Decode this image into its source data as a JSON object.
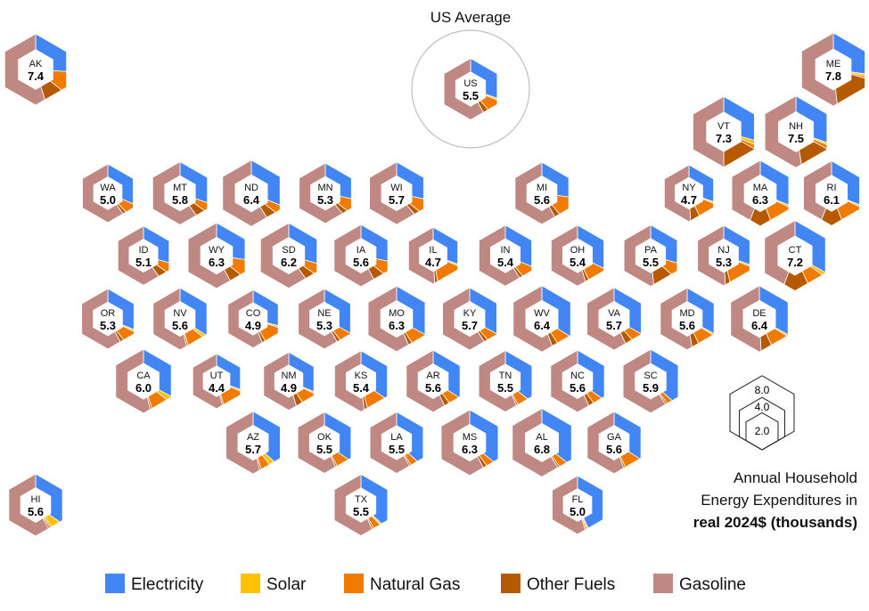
{
  "chart_data": {
    "type": "hex-tile-map-donut",
    "us_average_label": "US Average",
    "size_legend": {
      "values": [
        "8.0",
        "4.0",
        "2.0"
      ],
      "scale": "area"
    },
    "title_lines": [
      "Annual Household",
      "Energy Expenditures in",
      "real 2024$ (thousands)"
    ],
    "categories": [
      "Electricity",
      "Solar",
      "Natural Gas",
      "Other Fuels",
      "Gasoline"
    ],
    "colors": {
      "Electricity": "#4285F4",
      "Solar": "#FFC000",
      "Natural Gas": "#F07B00",
      "Other Fuels": "#B55A00",
      "Gasoline": "#C08882"
    },
    "share_order": "clockwise from top: Electricity, Solar, Natural Gas, Other Fuels, Gasoline (shares approximate)",
    "states": [
      {
        "code": "US",
        "value": "5.5",
        "shares": [
          0.3,
          0.01,
          0.08,
          0.03,
          0.58
        ]
      },
      {
        "code": "AK",
        "value": "7.4",
        "shares": [
          0.26,
          0.0,
          0.1,
          0.09,
          0.55
        ]
      },
      {
        "code": "ME",
        "value": "7.8",
        "shares": [
          0.27,
          0.01,
          0.01,
          0.19,
          0.52
        ]
      },
      {
        "code": "VT",
        "value": "7.3",
        "shares": [
          0.29,
          0.02,
          0.02,
          0.17,
          0.5
        ]
      },
      {
        "code": "NH",
        "value": "7.5",
        "shares": [
          0.3,
          0.01,
          0.02,
          0.14,
          0.53
        ]
      },
      {
        "code": "WA",
        "value": "5.0",
        "shares": [
          0.31,
          0.0,
          0.07,
          0.02,
          0.6
        ]
      },
      {
        "code": "MT",
        "value": "5.8",
        "shares": [
          0.3,
          0.0,
          0.05,
          0.05,
          0.6
        ]
      },
      {
        "code": "ND",
        "value": "6.4",
        "shares": [
          0.31,
          0.0,
          0.05,
          0.05,
          0.59
        ]
      },
      {
        "code": "MN",
        "value": "5.3",
        "shares": [
          0.28,
          0.0,
          0.08,
          0.03,
          0.61
        ]
      },
      {
        "code": "WI",
        "value": "5.7",
        "shares": [
          0.28,
          0.0,
          0.08,
          0.03,
          0.61
        ]
      },
      {
        "code": "MI",
        "value": "5.6",
        "shares": [
          0.27,
          0.0,
          0.12,
          0.03,
          0.58
        ]
      },
      {
        "code": "NY",
        "value": "4.7",
        "shares": [
          0.3,
          0.01,
          0.12,
          0.06,
          0.51
        ]
      },
      {
        "code": "MA",
        "value": "6.3",
        "shares": [
          0.31,
          0.01,
          0.12,
          0.12,
          0.44
        ]
      },
      {
        "code": "RI",
        "value": "6.1",
        "shares": [
          0.31,
          0.01,
          0.12,
          0.12,
          0.44
        ]
      },
      {
        "code": "ID",
        "value": "5.1",
        "shares": [
          0.29,
          0.0,
          0.06,
          0.05,
          0.6
        ]
      },
      {
        "code": "WY",
        "value": "6.3",
        "shares": [
          0.27,
          0.0,
          0.09,
          0.06,
          0.58
        ]
      },
      {
        "code": "SD",
        "value": "6.2",
        "shares": [
          0.29,
          0.0,
          0.06,
          0.05,
          0.6
        ]
      },
      {
        "code": "IA",
        "value": "5.6",
        "shares": [
          0.28,
          0.0,
          0.08,
          0.06,
          0.58
        ]
      },
      {
        "code": "IL",
        "value": "4.7",
        "shares": [
          0.3,
          0.01,
          0.16,
          0.02,
          0.51
        ]
      },
      {
        "code": "IN",
        "value": "5.4",
        "shares": [
          0.31,
          0.0,
          0.08,
          0.02,
          0.59
        ]
      },
      {
        "code": "OH",
        "value": "5.4",
        "shares": [
          0.32,
          0.0,
          0.11,
          0.02,
          0.55
        ]
      },
      {
        "code": "PA",
        "value": "5.5",
        "shares": [
          0.29,
          0.0,
          0.08,
          0.11,
          0.52
        ]
      },
      {
        "code": "NJ",
        "value": "5.3",
        "shares": [
          0.3,
          0.01,
          0.15,
          0.03,
          0.51
        ]
      },
      {
        "code": "CT",
        "value": "7.2",
        "shares": [
          0.33,
          0.02,
          0.08,
          0.13,
          0.44
        ]
      },
      {
        "code": "OR",
        "value": "5.3",
        "shares": [
          0.31,
          0.01,
          0.08,
          0.02,
          0.58
        ]
      },
      {
        "code": "NV",
        "value": "5.6",
        "shares": [
          0.34,
          0.02,
          0.09,
          0.01,
          0.54
        ]
      },
      {
        "code": "CO",
        "value": "4.9",
        "shares": [
          0.29,
          0.01,
          0.12,
          0.02,
          0.56
        ]
      },
      {
        "code": "NE",
        "value": "5.3",
        "shares": [
          0.33,
          0.0,
          0.07,
          0.02,
          0.58
        ]
      },
      {
        "code": "MO",
        "value": "6.3",
        "shares": [
          0.33,
          0.0,
          0.08,
          0.02,
          0.57
        ]
      },
      {
        "code": "KY",
        "value": "5.7",
        "shares": [
          0.33,
          0.0,
          0.06,
          0.02,
          0.59
        ]
      },
      {
        "code": "WV",
        "value": "6.4",
        "shares": [
          0.34,
          0.0,
          0.07,
          0.03,
          0.56
        ]
      },
      {
        "code": "VA",
        "value": "5.7",
        "shares": [
          0.33,
          0.0,
          0.06,
          0.04,
          0.57
        ]
      },
      {
        "code": "MD",
        "value": "5.6",
        "shares": [
          0.33,
          0.01,
          0.09,
          0.04,
          0.53
        ]
      },
      {
        "code": "DE",
        "value": "6.4",
        "shares": [
          0.33,
          0.01,
          0.09,
          0.06,
          0.51
        ]
      },
      {
        "code": "CA",
        "value": "6.0",
        "shares": [
          0.33,
          0.03,
          0.09,
          0.01,
          0.54
        ]
      },
      {
        "code": "UT",
        "value": "4.4",
        "shares": [
          0.3,
          0.01,
          0.14,
          0.01,
          0.54
        ]
      },
      {
        "code": "NM",
        "value": "4.9",
        "shares": [
          0.31,
          0.01,
          0.09,
          0.04,
          0.55
        ]
      },
      {
        "code": "KS",
        "value": "5.4",
        "shares": [
          0.35,
          0.0,
          0.11,
          0.02,
          0.52
        ]
      },
      {
        "code": "AR",
        "value": "5.6",
        "shares": [
          0.34,
          0.0,
          0.06,
          0.03,
          0.57
        ]
      },
      {
        "code": "TN",
        "value": "5.5",
        "shares": [
          0.36,
          0.0,
          0.06,
          0.01,
          0.57
        ]
      },
      {
        "code": "NC",
        "value": "5.6",
        "shares": [
          0.35,
          0.0,
          0.05,
          0.03,
          0.57
        ]
      },
      {
        "code": "SC",
        "value": "5.9",
        "shares": [
          0.37,
          0.0,
          0.03,
          0.01,
          0.59
        ]
      },
      {
        "code": "AZ",
        "value": "5.7",
        "shares": [
          0.37,
          0.03,
          0.05,
          0.01,
          0.54
        ]
      },
      {
        "code": "OK",
        "value": "5.5",
        "shares": [
          0.35,
          0.0,
          0.07,
          0.01,
          0.57
        ]
      },
      {
        "code": "LA",
        "value": "5.5",
        "shares": [
          0.37,
          0.0,
          0.04,
          0.01,
          0.58
        ]
      },
      {
        "code": "MS",
        "value": "6.3",
        "shares": [
          0.36,
          0.0,
          0.04,
          0.02,
          0.58
        ]
      },
      {
        "code": "AL",
        "value": "6.8",
        "shares": [
          0.36,
          0.0,
          0.04,
          0.01,
          0.59
        ]
      },
      {
        "code": "GA",
        "value": "5.6",
        "shares": [
          0.34,
          0.0,
          0.09,
          0.01,
          0.56
        ]
      },
      {
        "code": "HI",
        "value": "5.6",
        "shares": [
          0.35,
          0.05,
          0.01,
          0.01,
          0.58
        ]
      },
      {
        "code": "TX",
        "value": "5.5",
        "shares": [
          0.37,
          0.01,
          0.04,
          0.01,
          0.57
        ]
      },
      {
        "code": "FL",
        "value": "5.0",
        "shares": [
          0.43,
          0.01,
          0.01,
          0.0,
          0.55
        ]
      }
    ]
  }
}
